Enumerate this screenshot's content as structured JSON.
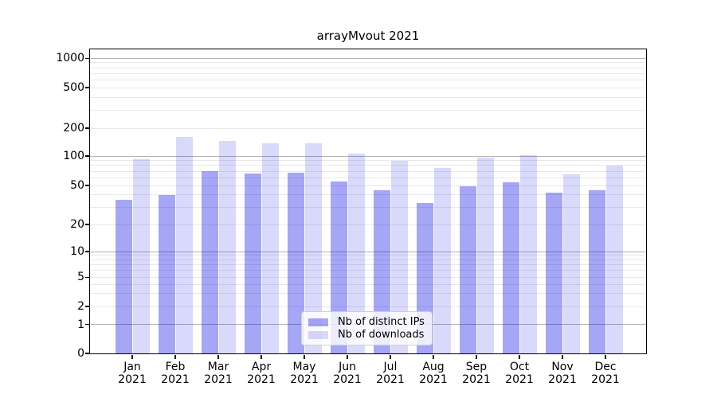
{
  "chart_data": {
    "type": "bar",
    "title": "arrayMvout 2021",
    "categories": [
      "Jan",
      "Feb",
      "Mar",
      "Apr",
      "May",
      "Jun",
      "Jul",
      "Aug",
      "Sep",
      "Oct",
      "Nov",
      "Dec"
    ],
    "category_year": "2021",
    "series": [
      {
        "name": "Nb of distinct IPs",
        "color": "#a6a6f6",
        "fill_rgba": "rgba(0,0,230,0.35)",
        "values": [
          36,
          40,
          70,
          66,
          68,
          55,
          45,
          33,
          49,
          54,
          42,
          45
        ]
      },
      {
        "name": "Nb of downloads",
        "color": "#d9d9fb",
        "fill_rgba": "rgba(0,0,230,0.15)",
        "values": [
          92,
          160,
          147,
          137,
          138,
          107,
          90,
          75,
          96,
          101,
          65,
          80
        ]
      }
    ],
    "yscale": "symlog",
    "ylim": [
      0,
      1240
    ],
    "y_tick_labels": [
      "0",
      "1",
      "2",
      "5",
      "10",
      "20",
      "50",
      "100",
      "200",
      "500",
      "1000"
    ],
    "y_major_gridlines": [
      1,
      10,
      100,
      1000
    ],
    "y_minor_gridlines": [
      2,
      3,
      4,
      5,
      6,
      7,
      8,
      9,
      20,
      30,
      40,
      50,
      60,
      70,
      80,
      90,
      200,
      300,
      400,
      500,
      600,
      700,
      800,
      900
    ],
    "grid": "horizontal",
    "legend_position": "lower center"
  },
  "colors": {
    "major_grid": "#b4b4b4",
    "minor_grid": "#e9e9ec",
    "axis": "#000000",
    "text": "#000000",
    "legend_border": "#d0d0d0"
  }
}
